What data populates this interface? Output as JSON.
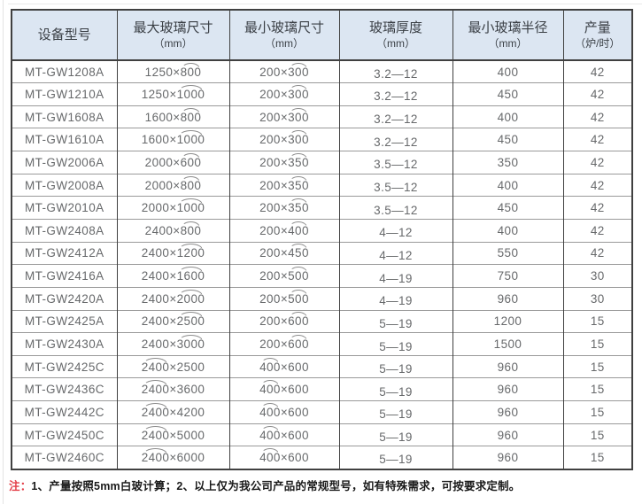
{
  "colors": {
    "header-bg": "#dce6f2",
    "border-dark": "#404040",
    "border-light": "#9a9a9a",
    "text-data": "#67696b",
    "text-header": "#3a3f45",
    "note-red": "#e4404a",
    "note-dark": "#1a1a1a"
  },
  "table": {
    "headers": [
      {
        "title": "设备型号",
        "sub": ""
      },
      {
        "title": "最大玻璃尺寸",
        "sub": "（mm）"
      },
      {
        "title": "最小玻璃尺寸",
        "sub": "（mm）"
      },
      {
        "title": "玻璃厚度",
        "sub": "（mm）"
      },
      {
        "title": "最小玻璃半径",
        "sub": "（mm）"
      },
      {
        "title": "产量",
        "sub": "（炉/时）"
      }
    ],
    "arc_marker_note": "^ before a number means an arc (curvature) mark is drawn above that dimension group",
    "rows": [
      [
        "MT-GW1208A",
        "1250×^800",
        "200×^300",
        "3.2—12",
        "400",
        "42"
      ],
      [
        "MT-GW1210A",
        "1250×^1000",
        "200×^300",
        "3.2—12",
        "450",
        "42"
      ],
      [
        "MT-GW1608A",
        "1600×^800",
        "200×^300",
        "3.2—12",
        "400",
        "42"
      ],
      [
        "MT-GW1610A",
        "1600×^1000",
        "200×^300",
        "3.2—12",
        "450",
        "42"
      ],
      [
        "MT-GW2006A",
        "2000×^600",
        "200×^350",
        "3.5—12",
        "350",
        "42"
      ],
      [
        "MT-GW2008A",
        "2000×^800",
        "200×^350",
        "3.5—12",
        "400",
        "42"
      ],
      [
        "MT-GW2010A",
        "2000×^1000",
        "200×^350",
        "3.5—12",
        "450",
        "42"
      ],
      [
        "MT-GW2408A",
        "2400×^800",
        "200×^400",
        "4—12",
        "400",
        "42"
      ],
      [
        "MT-GW2412A",
        "2400×^1200",
        "200×^450",
        "4—12",
        "550",
        "42"
      ],
      [
        "MT-GW2416A",
        "2400×^1600",
        "200×^500",
        "4—19",
        "750",
        "30"
      ],
      [
        "MT-GW2420A",
        "2400×^2000",
        "200×^500",
        "4—19",
        "960",
        "30"
      ],
      [
        "MT-GW2425A",
        "2400×^2500",
        "200×^600",
        "5—19",
        "1200",
        "15"
      ],
      [
        "MT-GW2430A",
        "2400×^3000",
        "200×^600",
        "5—19",
        "1500",
        "15"
      ],
      [
        "MT-GW2425C",
        "^2400×2500",
        "^400×600",
        "5—19",
        "960",
        "15"
      ],
      [
        "MT-GW2436C",
        "^2400×3600",
        "^400×600",
        "5—19",
        "960",
        "15"
      ],
      [
        "MT-GW2442C",
        "^2400×4200",
        "^400×600",
        "5—19",
        "960",
        "15"
      ],
      [
        "MT-GW2450C",
        "^2400×5000",
        "^400×600",
        "5—19",
        "960",
        "15"
      ],
      [
        "MT-GW2460C",
        "^2400×6000",
        "^400×600",
        "5—19",
        "960",
        "15"
      ]
    ]
  },
  "note": {
    "prefix": "注：",
    "text": "1、产量按照5mm白玻计算；2、以上仅为我公司产品的常规型号，如有特殊需求，可按要求定制。"
  }
}
